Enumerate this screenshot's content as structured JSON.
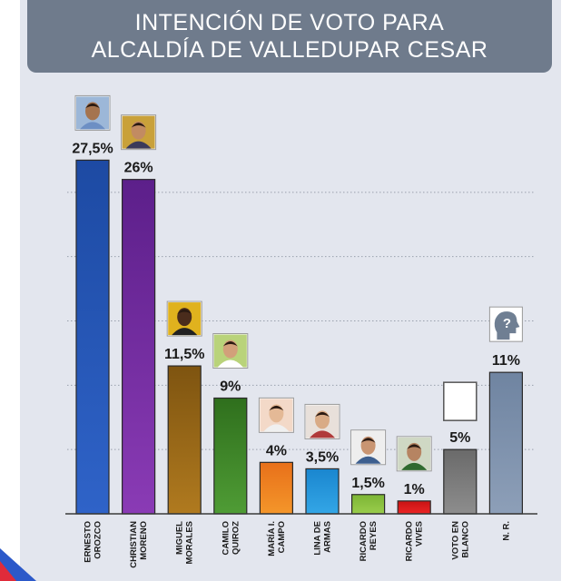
{
  "title": {
    "line1": "INTENCIÓN DE VOTO PARA",
    "line2": "ALCALDÍA DE VALLEDUPAR CESAR"
  },
  "chart_data": {
    "type": "bar",
    "title": "INTENCIÓN DE VOTO PARA ALCALDÍA DE VALLEDUPAR CESAR",
    "categories": [
      [
        "ERNESTO",
        "OROZCO"
      ],
      [
        "CHRISTIAN",
        "MORENO"
      ],
      [
        "MIGUEL",
        "MORALES"
      ],
      [
        "CAMILO",
        "QUIROZ"
      ],
      [
        "MARÍA I.",
        "CAMPO"
      ],
      [
        "LINA DE",
        "ARMAS"
      ],
      [
        "RICARDO",
        "REYES"
      ],
      [
        "RICARDO",
        "VIVES"
      ],
      [
        "VOTO EN",
        "BLANCO"
      ],
      [
        "N. R."
      ]
    ],
    "values": [
      27.5,
      26,
      11.5,
      9,
      4,
      3.5,
      1.5,
      1,
      5,
      11
    ],
    "value_labels": [
      "27,5%",
      "26%",
      "11,5%",
      "9%",
      "4%",
      "3,5%",
      "1,5%",
      "1%",
      "5%",
      "11%"
    ],
    "colors": [
      [
        "#2f63c8",
        "#1d4aa3"
      ],
      [
        "#8a3bb5",
        "#5c1f8a"
      ],
      [
        "#b07a1f",
        "#7e5410"
      ],
      [
        "#4f9c35",
        "#2f6f1d"
      ],
      [
        "#f4962a",
        "#e8701a"
      ],
      [
        "#33a6e6",
        "#1a86cf"
      ],
      [
        "#9acd4c",
        "#7cb535"
      ],
      [
        "#ec2424",
        "#c81414"
      ],
      [
        "#8d8d8d",
        "#6a6a6a"
      ],
      [
        "#8d9fb8",
        "#6f84a1"
      ]
    ],
    "icons": [
      "candidate-photo",
      "candidate-photo",
      "candidate-photo",
      "candidate-photo",
      "candidate-photo",
      "candidate-photo",
      "candidate-photo",
      "candidate-photo",
      "blank-box",
      "unknown-person-icon"
    ],
    "ylim": [
      0,
      30
    ],
    "grid": true
  }
}
